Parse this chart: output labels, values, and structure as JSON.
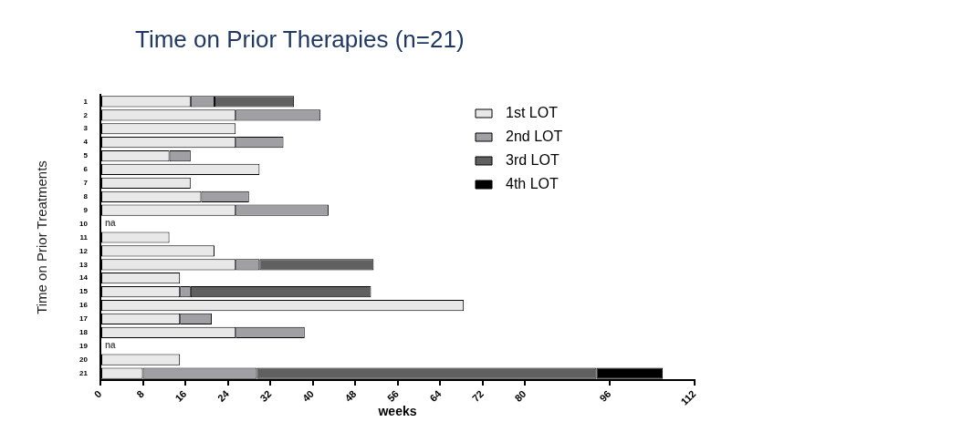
{
  "chart_data": {
    "type": "bar",
    "orientation": "horizontal",
    "stacked": true,
    "title": "Time on Prior Therapies (n=21)",
    "xlabel": "weeks",
    "ylabel": "Time on Prior Treatments",
    "categories": [
      "1",
      "2",
      "3",
      "4",
      "5",
      "6",
      "7",
      "8",
      "9",
      "10",
      "11",
      "12",
      "13",
      "14",
      "15",
      "16",
      "17",
      "18",
      "19",
      "20",
      "21"
    ],
    "series": [
      {
        "name": "1st LOT",
        "color": "#e8e8e8",
        "values": [
          17,
          25.5,
          25.5,
          25.5,
          13,
          30,
          17,
          19,
          25.5,
          null,
          13,
          21.5,
          25.5,
          15,
          15,
          68.5,
          15,
          25.5,
          null,
          15,
          8
        ]
      },
      {
        "name": "2nd LOT",
        "color": "#a0a0a4",
        "values": [
          4.5,
          16,
          null,
          9,
          4,
          null,
          null,
          9,
          17.5,
          null,
          null,
          null,
          4.5,
          null,
          2,
          null,
          6,
          13,
          null,
          null,
          21.5
        ]
      },
      {
        "name": "3rd LOT",
        "color": "#606060",
        "values": [
          15,
          null,
          null,
          null,
          null,
          null,
          null,
          null,
          null,
          null,
          null,
          null,
          21.5,
          null,
          34,
          null,
          null,
          null,
          null,
          null,
          64
        ]
      },
      {
        "name": "4th LOT",
        "color": "#000000",
        "values": [
          null,
          null,
          null,
          null,
          null,
          null,
          null,
          null,
          null,
          null,
          null,
          null,
          null,
          null,
          null,
          null,
          null,
          null,
          null,
          null,
          12.5
        ]
      }
    ],
    "xlim": [
      0,
      112
    ],
    "xticks": [
      0,
      8,
      16,
      24,
      32,
      40,
      48,
      56,
      64,
      72,
      80,
      96,
      112
    ],
    "annotations": [
      {
        "text": "na",
        "x": 0,
        "y": "10"
      },
      {
        "text": "na",
        "x": 0,
        "y": "19"
      }
    ],
    "grid": false,
    "legend": "top right"
  }
}
